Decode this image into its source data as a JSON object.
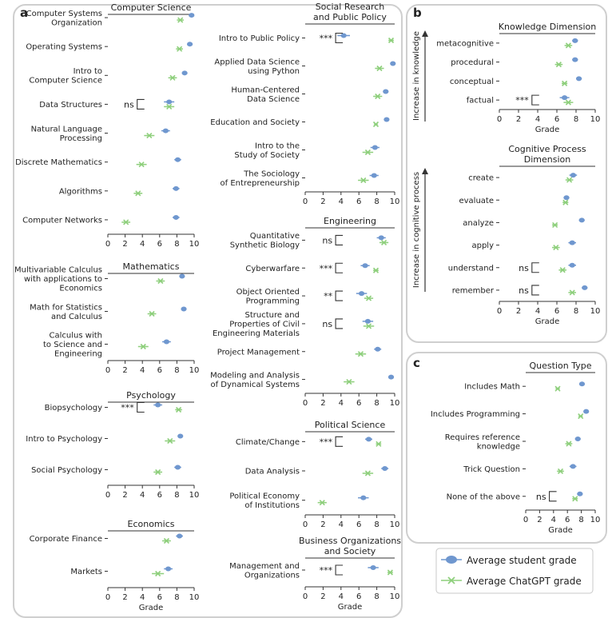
{
  "legend": {
    "student_label": "Average student grade",
    "gpt_label": "Average ChatGPT grade"
  },
  "colors": {
    "student": "#6f97cf",
    "gpt": "#8ecf7c",
    "text": "#222222",
    "axis": "#333333",
    "frame": "#cfcfcf"
  },
  "panel_labels": {
    "a": "a",
    "b": "b",
    "c": "c"
  },
  "axis_x_label": "Grade",
  "chart_data": [
    {
      "id": "cs",
      "type": "scatter",
      "title": "Computer Science",
      "xlim": [
        0,
        10
      ],
      "xticks": [
        0,
        2,
        4,
        6,
        8,
        10
      ],
      "show_xlabel": false,
      "categories": [
        "Computer Systems Organization",
        "Operating Systems",
        "Intro to Computer Science",
        "Data Structures",
        "Natural Language Processing",
        "Discrete Mathematics",
        "Algorithms",
        "Computer Networks"
      ],
      "series": [
        {
          "name": "Average student grade",
          "values": [
            9.7,
            9.5,
            8.9,
            7.1,
            6.7,
            8.1,
            7.9,
            7.9
          ],
          "err": [
            0.2,
            0.2,
            0.3,
            0.6,
            0.5,
            0.4,
            0.4,
            0.4
          ]
        },
        {
          "name": "Average ChatGPT grade",
          "values": [
            8.4,
            8.3,
            7.5,
            7.1,
            4.8,
            3.9,
            3.5,
            2.1
          ],
          "err": [
            0.4,
            0.4,
            0.5,
            0.6,
            0.6,
            0.6,
            0.5,
            0.5
          ]
        }
      ],
      "annotations": [
        {
          "category": "Data Structures",
          "text": "ns"
        }
      ]
    },
    {
      "id": "math",
      "type": "scatter",
      "title": "Mathematics",
      "xlim": [
        0,
        10
      ],
      "xticks": [
        0,
        2,
        4,
        6,
        8,
        10
      ],
      "show_xlabel": false,
      "categories": [
        "Multivariable Calculus with applications to Economics",
        "Math for Statistics and Calculus",
        "Calculus with to Science and Engineering"
      ],
      "series": [
        {
          "name": "Average student grade",
          "values": [
            8.6,
            8.8,
            6.8
          ],
          "err": [
            0.3,
            0.3,
            0.5
          ]
        },
        {
          "name": "Average ChatGPT grade",
          "values": [
            6.1,
            5.1,
            4.1
          ],
          "err": [
            0.5,
            0.5,
            0.6
          ]
        }
      ],
      "annotations": []
    },
    {
      "id": "psych",
      "type": "scatter",
      "title": "Psychology",
      "xlim": [
        0,
        10
      ],
      "xticks": [
        0,
        2,
        4,
        6,
        8,
        10
      ],
      "show_xlabel": false,
      "categories": [
        "Biopsychology",
        "Intro to Psychology",
        "Social Psychology"
      ],
      "series": [
        {
          "name": "Average student grade",
          "values": [
            5.8,
            8.4,
            8.1
          ],
          "err": [
            0.5,
            0.3,
            0.4
          ]
        },
        {
          "name": "Average ChatGPT grade",
          "values": [
            8.2,
            7.2,
            5.8
          ],
          "err": [
            0.4,
            0.6,
            0.5
          ]
        }
      ],
      "annotations": [
        {
          "category": "Biopsychology",
          "text": "***"
        }
      ]
    },
    {
      "id": "econ",
      "type": "scatter",
      "title": "Economics",
      "xlim": [
        0,
        10
      ],
      "xticks": [
        0,
        2,
        4,
        6,
        8,
        10
      ],
      "show_xlabel": true,
      "categories": [
        "Corporate Finance",
        "Markets"
      ],
      "series": [
        {
          "name": "Average student grade",
          "values": [
            8.3,
            7.0
          ],
          "err": [
            0.4,
            0.5
          ]
        },
        {
          "name": "Average ChatGPT grade",
          "values": [
            6.8,
            5.8
          ],
          "err": [
            0.5,
            0.7
          ]
        }
      ],
      "annotations": []
    },
    {
      "id": "srpp",
      "type": "scatter",
      "title": "Social Research and Public Policy",
      "xlim": [
        0,
        10
      ],
      "xticks": [
        0,
        2,
        4,
        6,
        8,
        10
      ],
      "show_xlabel": false,
      "categories": [
        "Intro to Public Policy",
        "Applied Data Science using Python",
        "Human-Centered Data Science",
        "Education and Society",
        "Intro to the Study of Society",
        "The Sociology of Entrepreneurship"
      ],
      "series": [
        {
          "name": "Average student grade",
          "values": [
            4.3,
            9.8,
            9.0,
            9.1,
            7.8,
            7.7
          ],
          "err": [
            0.7,
            0.2,
            0.3,
            0.2,
            0.5,
            0.5
          ]
        },
        {
          "name": "Average ChatGPT grade",
          "values": [
            9.6,
            8.3,
            8.1,
            7.9,
            7.0,
            6.5
          ],
          "err": [
            0.3,
            0.5,
            0.5,
            0.2,
            0.6,
            0.6
          ]
        }
      ],
      "annotations": [
        {
          "category": "Intro to Public Policy",
          "text": "***"
        }
      ]
    },
    {
      "id": "eng",
      "type": "scatter",
      "title": "Engineering",
      "xlim": [
        0,
        10
      ],
      "xticks": [
        0,
        2,
        4,
        6,
        8,
        10
      ],
      "show_xlabel": false,
      "categories": [
        "Quantitative Synthetic Biology",
        "Cyberwarfare",
        "Object Oriented Programming",
        "Structure and Properties of Civil Engineering Materials",
        "Project Management",
        "Modeling and Analysis of Dynamical Systems"
      ],
      "series": [
        {
          "name": "Average student grade",
          "values": [
            8.5,
            6.7,
            6.3,
            7.0,
            8.1,
            9.6
          ],
          "err": [
            0.5,
            0.5,
            0.6,
            0.6,
            0.4,
            0.3
          ]
        },
        {
          "name": "Average ChatGPT grade",
          "values": [
            8.8,
            7.9,
            7.1,
            7.1,
            6.2,
            4.9
          ],
          "err": [
            0.5,
            0.3,
            0.5,
            0.6,
            0.6,
            0.6
          ]
        }
      ],
      "annotations": [
        {
          "category": "Quantitative Synthetic Biology",
          "text": "ns"
        },
        {
          "category": "Cyberwarfare",
          "text": "***"
        },
        {
          "category": "Object Oriented Programming",
          "text": "**"
        },
        {
          "category": "Structure and Properties of Civil Engineering Materials",
          "text": "ns"
        }
      ]
    },
    {
      "id": "polsci",
      "type": "scatter",
      "title": "Political Science",
      "xlim": [
        0,
        10
      ],
      "xticks": [
        0,
        2,
        4,
        6,
        8,
        10
      ],
      "show_xlabel": false,
      "categories": [
        "Climate/Change",
        "Data Analysis",
        "Political Economy of Institutions"
      ],
      "series": [
        {
          "name": "Average student grade",
          "values": [
            7.1,
            8.9,
            6.5
          ],
          "err": [
            0.4,
            0.4,
            0.6
          ]
        },
        {
          "name": "Average ChatGPT grade",
          "values": [
            8.2,
            7.0,
            1.9
          ],
          "err": [
            0.3,
            0.6,
            0.5
          ]
        }
      ],
      "annotations": [
        {
          "category": "Climate/Change",
          "text": "***"
        }
      ]
    },
    {
      "id": "bos",
      "type": "scatter",
      "title": "Business Organizations and Society",
      "xlim": [
        0,
        10
      ],
      "xticks": [
        0,
        2,
        4,
        6,
        8,
        10
      ],
      "show_xlabel": true,
      "categories": [
        "Management and Organizations"
      ],
      "series": [
        {
          "name": "Average student grade",
          "values": [
            7.6
          ],
          "err": [
            0.6
          ]
        },
        {
          "name": "Average ChatGPT grade",
          "values": [
            9.5
          ],
          "err": [
            0.3
          ]
        }
      ],
      "annotations": [
        {
          "category": "Management and Organizations",
          "text": "***"
        }
      ]
    },
    {
      "id": "know",
      "type": "scatter",
      "title": "Knowledge Dimension",
      "xlim": [
        0,
        10
      ],
      "xticks": [
        0,
        2,
        4,
        6,
        8,
        10
      ],
      "show_xlabel": true,
      "side_label": "Increase in knowledge",
      "categories": [
        "metacognitive",
        "procedural",
        "conceptual",
        "factual"
      ],
      "series": [
        {
          "name": "Average student grade",
          "values": [
            7.9,
            7.9,
            8.3,
            6.8
          ],
          "err": [
            0.3,
            0.3,
            0.3,
            0.5
          ]
        },
        {
          "name": "Average ChatGPT grade",
          "values": [
            7.2,
            6.2,
            6.8,
            7.2
          ],
          "err": [
            0.4,
            0.4,
            0.3,
            0.5
          ]
        }
      ],
      "annotations": [
        {
          "category": "factual",
          "text": "***"
        }
      ]
    },
    {
      "id": "cog",
      "type": "scatter",
      "title": "Cognitive Process Dimension",
      "xlim": [
        0,
        10
      ],
      "xticks": [
        0,
        2,
        4,
        6,
        8,
        10
      ],
      "show_xlabel": true,
      "side_label": "Increase in cognitive process",
      "categories": [
        "create",
        "evaluate",
        "analyze",
        "apply",
        "understand",
        "remember"
      ],
      "series": [
        {
          "name": "Average student grade",
          "values": [
            7.7,
            7.0,
            8.6,
            7.6,
            7.6,
            8.9
          ],
          "err": [
            0.4,
            0.3,
            0.3,
            0.4,
            0.4,
            0.3
          ]
        },
        {
          "name": "Average ChatGPT grade",
          "values": [
            7.3,
            6.9,
            5.8,
            5.9,
            6.6,
            7.6
          ],
          "err": [
            0.4,
            0.3,
            0.3,
            0.4,
            0.4,
            0.4
          ]
        }
      ],
      "annotations": [
        {
          "category": "understand",
          "text": "ns"
        },
        {
          "category": "remember",
          "text": "ns"
        }
      ]
    },
    {
      "id": "qtype",
      "type": "scatter",
      "title": "Question Type",
      "xlim": [
        0,
        10
      ],
      "xticks": [
        0,
        2,
        4,
        6,
        8,
        10
      ],
      "show_xlabel": true,
      "categories": [
        "Includes Math",
        "Includes Programming",
        "Requires reference knowledge",
        "Trick Question",
        "None of the above"
      ],
      "series": [
        {
          "name": "Average student grade",
          "values": [
            8.1,
            8.7,
            7.5,
            6.8,
            7.8
          ],
          "err": [
            0.3,
            0.3,
            0.4,
            0.5,
            0.4
          ]
        },
        {
          "name": "Average ChatGPT grade",
          "values": [
            4.6,
            7.9,
            6.2,
            5.0,
            7.1
          ],
          "err": [
            0.3,
            0.3,
            0.5,
            0.5,
            0.4
          ]
        }
      ],
      "annotations": [
        {
          "category": "None of the above",
          "text": "ns"
        }
      ]
    }
  ]
}
